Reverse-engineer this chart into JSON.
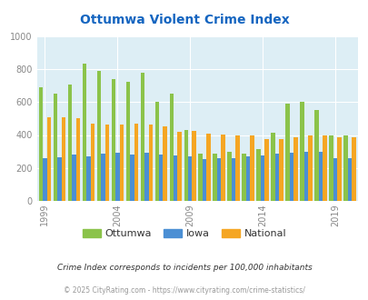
{
  "years": [
    1999,
    2000,
    2001,
    2002,
    2003,
    2004,
    2005,
    2006,
    2007,
    2008,
    2009,
    2010,
    2011,
    2012,
    2013,
    2014,
    2015,
    2016,
    2017,
    2018,
    2019,
    2020
  ],
  "ottumwa": [
    690,
    650,
    705,
    835,
    790,
    740,
    725,
    775,
    600,
    650,
    430,
    285,
    285,
    300,
    285,
    315,
    415,
    590,
    600,
    550,
    400,
    400
  ],
  "iowa": [
    258,
    263,
    280,
    272,
    288,
    293,
    283,
    293,
    283,
    278,
    268,
    252,
    258,
    258,
    272,
    278,
    288,
    293,
    298,
    298,
    262,
    262
  ],
  "national": [
    510,
    505,
    500,
    470,
    465,
    465,
    470,
    465,
    455,
    420,
    425,
    410,
    405,
    395,
    395,
    375,
    375,
    385,
    395,
    395,
    385,
    385
  ],
  "ottumwa_color": "#8bc34a",
  "iowa_color": "#4b8fd4",
  "national_color": "#f5a623",
  "bg_color": "#ddeef5",
  "title": "Ottumwa Violent Crime Index",
  "title_color": "#1565c0",
  "ylim": [
    0,
    1000
  ],
  "yticks": [
    0,
    200,
    400,
    600,
    800,
    1000
  ],
  "xlabel_ticks": [
    1999,
    2004,
    2009,
    2014,
    2019
  ],
  "footnote1": "Crime Index corresponds to incidents per 100,000 inhabitants",
  "footnote2": "© 2025 CityRating.com - https://www.cityrating.com/crime-statistics/",
  "legend_labels": [
    "Ottumwa",
    "Iowa",
    "National"
  ]
}
